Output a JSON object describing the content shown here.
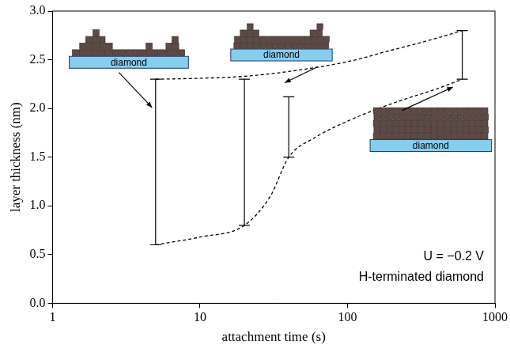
{
  "chart_data": {
    "type": "line",
    "x_label": "attachment time (s)",
    "y_label": "layer thickness (nm)",
    "log": "x",
    "grid": false,
    "tick_labels": true,
    "xlim": [
      1,
      1000
    ],
    "xticks": [
      1,
      10,
      100,
      1000
    ],
    "ylim": [
      0,
      3
    ],
    "yticks": [
      {
        "value": 0,
        "label": "0.0"
      },
      0.5,
      {
        "value": 1,
        "label": "1.0"
      },
      1.5,
      {
        "value": 2,
        "label": "2.0"
      },
      2.5,
      {
        "value": 3,
        "label": "3.0"
      }
    ],
    "series": [
      {
        "x": [
          5,
          10,
          20,
          40,
          100,
          200,
          400,
          600
        ],
        "values": [
          2.3,
          2.31,
          2.33,
          2.38,
          2.48,
          2.6,
          2.72,
          2.8
        ],
        "color": "#000000",
        "line_style": "dashed",
        "marker": "none"
      },
      {
        "x": [
          5,
          10,
          20,
          30,
          40,
          60,
          100,
          200,
          400,
          600
        ],
        "values": [
          0.6,
          0.68,
          0.8,
          1.1,
          1.5,
          1.7,
          1.87,
          2.05,
          2.2,
          2.3
        ],
        "color": "#000000",
        "line_style": "dashed",
        "marker": "none"
      }
    ],
    "error_bars": {
      "x": [
        5,
        20,
        40,
        600
      ],
      "low": [
        0.6,
        0.8,
        1.5,
        2.3
      ],
      "high": [
        2.3,
        2.3,
        2.12,
        2.8
      ],
      "color": "#000000"
    },
    "annotations": [
      "U = −0.2 V",
      "H-terminated diamond"
    ],
    "inset_labels": [
      "diamond",
      "diamond",
      "diamond"
    ]
  }
}
